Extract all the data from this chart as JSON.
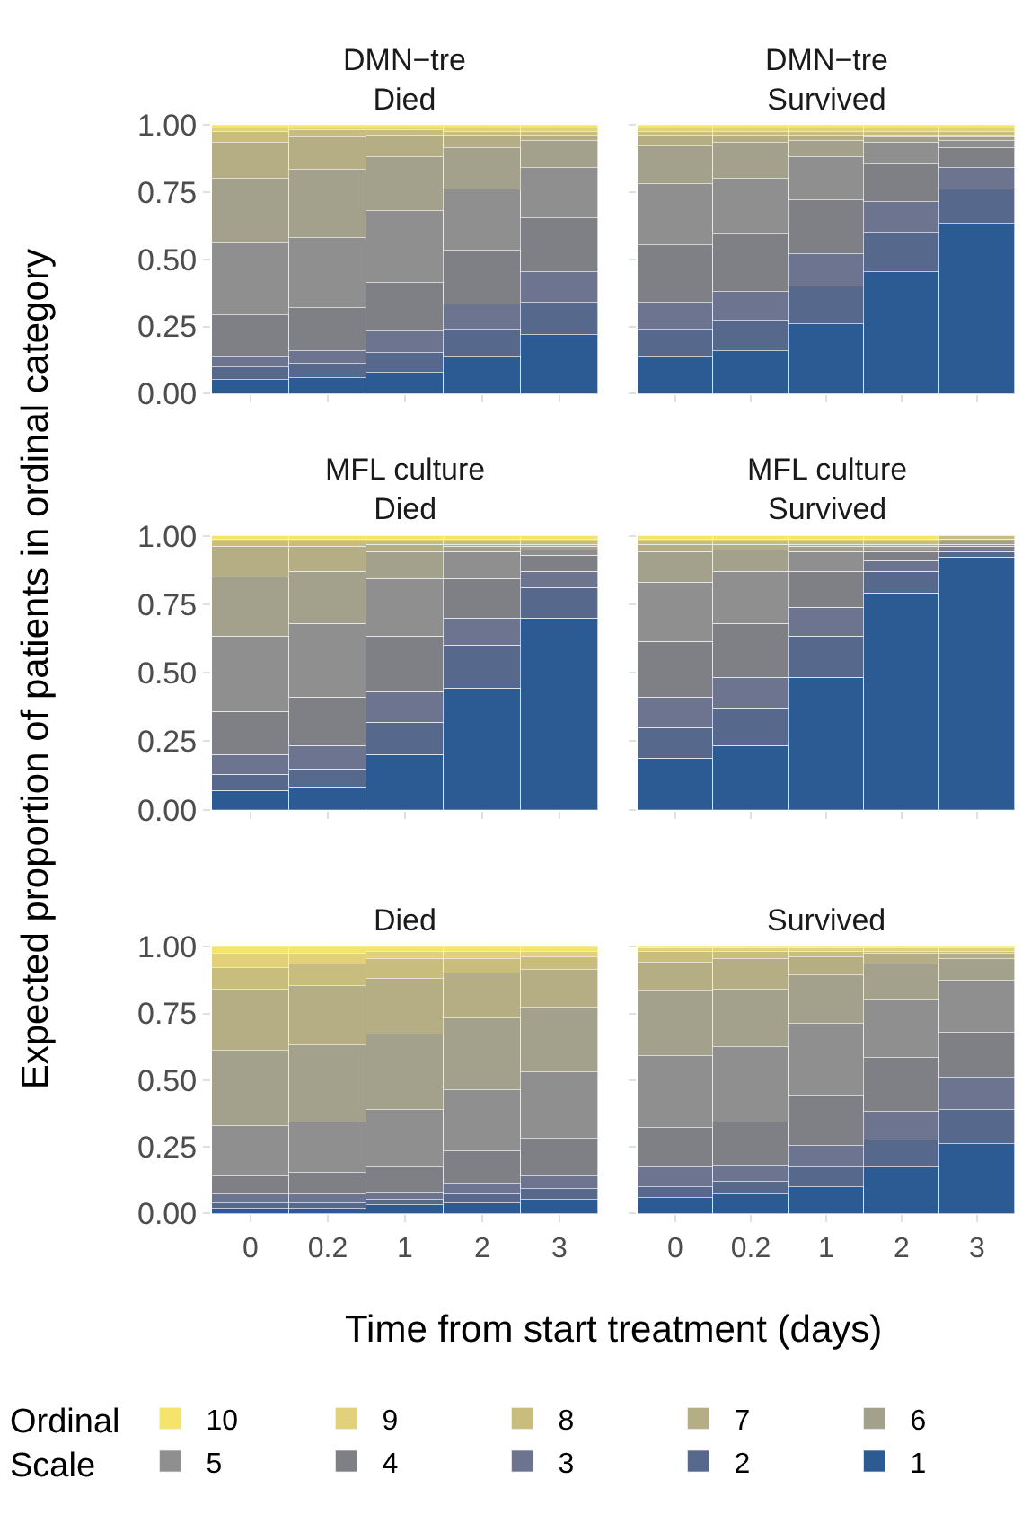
{
  "chart_data": [
    {
      "type": "bar",
      "title": "DMN−tre\nDied",
      "stacked": true,
      "grid": true,
      "tick_labels": "y",
      "legend": "bottom",
      "legend_title": "Ordinal\nScale",
      "categories": [
        "0",
        "0.2",
        "1",
        "2",
        "3"
      ],
      "ylim": [
        0,
        1
      ],
      "yticks": [
        {
          "value": 0,
          "label": "0.00"
        },
        {
          "value": 0.25,
          "label": "0.25"
        },
        {
          "value": 0.5,
          "label": "0.50"
        },
        {
          "value": 0.75,
          "label": "0.75"
        },
        {
          "value": 1,
          "label": "1.00"
        }
      ],
      "series": [
        {
          "name": "1",
          "color": "#2c5a92",
          "values": [
            0.05,
            0.06,
            0.08,
            0.14,
            0.22
          ]
        },
        {
          "name": "2",
          "color": "#57688d",
          "values": [
            0.05,
            0.05,
            0.07,
            0.1,
            0.12
          ]
        },
        {
          "name": "3",
          "color": "#6c7490",
          "values": [
            0.04,
            0.05,
            0.08,
            0.09,
            0.11
          ]
        },
        {
          "name": "4",
          "color": "#7f8086",
          "values": [
            0.15,
            0.16,
            0.18,
            0.2,
            0.2
          ]
        },
        {
          "name": "5",
          "color": "#8f8f8f",
          "values": [
            0.27,
            0.26,
            0.27,
            0.23,
            0.19
          ]
        },
        {
          "name": "6",
          "color": "#a3a08b",
          "values": [
            0.24,
            0.25,
            0.2,
            0.15,
            0.1
          ]
        },
        {
          "name": "7",
          "color": "#b5ae85",
          "values": [
            0.13,
            0.12,
            0.08,
            0.05,
            0.02
          ]
        },
        {
          "name": "8",
          "color": "#c8bd7d",
          "values": [
            0.04,
            0.03,
            0.02,
            0.01,
            0.01
          ]
        },
        {
          "name": "9",
          "color": "#e2d17a",
          "values": [
            0.02,
            0.01,
            0.01,
            0.02,
            0.02
          ]
        },
        {
          "name": "10",
          "color": "#f5e46c",
          "values": [
            0.01,
            0.01,
            0.01,
            0.01,
            0.01
          ]
        }
      ]
    },
    {
      "type": "bar",
      "title": "DMN−tre\nSurvived",
      "stacked": true,
      "grid": true,
      "tick_labels": false,
      "categories": [
        "0",
        "0.2",
        "1",
        "2",
        "3"
      ],
      "ylim": [
        0,
        1
      ],
      "yticks": [
        0,
        0.25,
        0.5,
        0.75,
        1
      ],
      "series": [
        {
          "color": "#2c5a92",
          "values": [
            0.14,
            0.16,
            0.26,
            0.45,
            0.63
          ]
        },
        {
          "color": "#57688d",
          "values": [
            0.1,
            0.11,
            0.14,
            0.15,
            0.13
          ]
        },
        {
          "color": "#6c7490",
          "values": [
            0.1,
            0.11,
            0.12,
            0.11,
            0.08
          ]
        },
        {
          "color": "#7f8086",
          "values": [
            0.21,
            0.21,
            0.2,
            0.14,
            0.07
          ]
        },
        {
          "color": "#8f8f8f",
          "values": [
            0.23,
            0.21,
            0.16,
            0.08,
            0.03
          ]
        },
        {
          "color": "#a3a08b",
          "values": [
            0.14,
            0.13,
            0.06,
            0.02,
            0.01
          ]
        },
        {
          "color": "#b5ae85",
          "values": [
            0.04,
            0.03,
            0.02,
            0.01,
            0.01
          ]
        },
        {
          "color": "#c8bd7d",
          "values": [
            0.01,
            0.01,
            0.01,
            0.01,
            0.01
          ]
        },
        {
          "color": "#e2d17a",
          "values": [
            0.02,
            0.02,
            0.02,
            0.02,
            0.02
          ]
        },
        {
          "color": "#f5e46c",
          "values": [
            0.01,
            0.01,
            0.01,
            0.01,
            0.01
          ]
        }
      ]
    },
    {
      "type": "bar",
      "title": "MFL culture\nDied",
      "ylabel": "Expected proportion of patients in ordinal category",
      "stacked": true,
      "grid": true,
      "tick_labels": "y",
      "categories": [
        "0",
        "0.2",
        "1",
        "2",
        "3"
      ],
      "ylim": [
        0,
        1
      ],
      "yticks": [
        {
          "value": 0,
          "label": "0.00"
        },
        {
          "value": 0.25,
          "label": "0.25"
        },
        {
          "value": 0.5,
          "label": "0.50"
        },
        {
          "value": 0.75,
          "label": "0.75"
        },
        {
          "value": 1,
          "label": "1.00"
        }
      ],
      "series": [
        {
          "color": "#2c5a92",
          "values": [
            0.07,
            0.08,
            0.2,
            0.44,
            0.7
          ]
        },
        {
          "color": "#57688d",
          "values": [
            0.06,
            0.07,
            0.12,
            0.16,
            0.11
          ]
        },
        {
          "color": "#6c7490",
          "values": [
            0.07,
            0.08,
            0.11,
            0.1,
            0.06
          ]
        },
        {
          "color": "#7f8086",
          "values": [
            0.16,
            0.18,
            0.2,
            0.14,
            0.06
          ]
        },
        {
          "color": "#8f8f8f",
          "values": [
            0.27,
            0.27,
            0.21,
            0.1,
            0.02
          ]
        },
        {
          "color": "#a3a08b",
          "values": [
            0.22,
            0.19,
            0.1,
            0.02,
            0.01
          ]
        },
        {
          "color": "#b5ae85",
          "values": [
            0.11,
            0.09,
            0.03,
            0.01,
            0.01
          ]
        },
        {
          "color": "#c8bd7d",
          "values": [
            0.02,
            0.02,
            0.01,
            0.01,
            0.01
          ]
        },
        {
          "color": "#e2d17a",
          "values": [
            0.01,
            0.01,
            0.01,
            0.01,
            0.01
          ]
        },
        {
          "color": "#f5e46c",
          "values": [
            0.01,
            0.01,
            0.01,
            0.01,
            0.01
          ]
        }
      ]
    },
    {
      "type": "bar",
      "title": "MFL culture\nSurvived",
      "stacked": true,
      "grid": true,
      "tick_labels": false,
      "categories": [
        "0",
        "0.2",
        "1",
        "2",
        "3"
      ],
      "ylim": [
        0,
        1
      ],
      "yticks": [
        0,
        0.25,
        0.5,
        0.75,
        1
      ],
      "series": [
        {
          "color": "#2c5a92",
          "values": [
            0.19,
            0.23,
            0.48,
            0.79,
            0.92
          ]
        },
        {
          "color": "#57688d",
          "values": [
            0.11,
            0.14,
            0.15,
            0.08,
            0.02
          ]
        },
        {
          "color": "#6c7490",
          "values": [
            0.11,
            0.11,
            0.11,
            0.04,
            0.01
          ]
        },
        {
          "color": "#7f8086",
          "values": [
            0.2,
            0.2,
            0.13,
            0.03,
            0.01
          ]
        },
        {
          "color": "#8f8f8f",
          "values": [
            0.22,
            0.19,
            0.07,
            0.01,
            0.01
          ]
        },
        {
          "color": "#a3a08b",
          "values": [
            0.11,
            0.08,
            0.02,
            0.01,
            0.01
          ]
        },
        {
          "color": "#b5ae85",
          "values": [
            0.03,
            0.02,
            0.01,
            0.01,
            0.01
          ]
        },
        {
          "color": "#c8bd7d",
          "values": [
            0.01,
            0.01,
            0.01,
            0.01,
            0.01
          ]
        },
        {
          "color": "#e2d17a",
          "values": [
            0.01,
            0.01,
            0.01,
            0.01,
            null
          ]
        },
        {
          "color": "#f5e46c",
          "values": [
            0.01,
            0.01,
            0.01,
            0.01,
            null
          ]
        }
      ]
    },
    {
      "type": "bar",
      "title": "Died",
      "xlabel": "Time from start treatment (days)",
      "stacked": true,
      "grid": true,
      "categories": [
        "0",
        "0.2",
        "1",
        "2",
        "3"
      ],
      "ylim": [
        0,
        1
      ],
      "yticks": [
        {
          "value": 0,
          "label": "0.00"
        },
        {
          "value": 0.25,
          "label": "0.25"
        },
        {
          "value": 0.5,
          "label": "0.50"
        },
        {
          "value": 0.75,
          "label": "0.75"
        },
        {
          "value": 1,
          "label": "1.00"
        }
      ],
      "series": [
        {
          "color": "#2c5a92",
          "values": [
            0.02,
            0.02,
            0.03,
            0.04,
            0.05
          ]
        },
        {
          "color": "#57688d",
          "values": [
            0.02,
            0.02,
            0.02,
            0.03,
            0.04
          ]
        },
        {
          "color": "#6c7490",
          "values": [
            0.03,
            0.03,
            0.03,
            0.04,
            0.05
          ]
        },
        {
          "color": "#7f8086",
          "values": [
            0.07,
            0.08,
            0.09,
            0.12,
            0.14
          ]
        },
        {
          "color": "#8f8f8f",
          "values": [
            0.19,
            0.19,
            0.22,
            0.23,
            0.25
          ]
        },
        {
          "color": "#a3a08b",
          "values": [
            0.28,
            0.29,
            0.28,
            0.27,
            0.24
          ]
        },
        {
          "color": "#b5ae85",
          "values": [
            0.23,
            0.22,
            0.21,
            0.17,
            0.14
          ]
        },
        {
          "color": "#c8bd7d",
          "values": [
            0.08,
            0.08,
            0.07,
            0.05,
            0.05
          ]
        },
        {
          "color": "#e2d17a",
          "values": [
            0.05,
            0.04,
            0.03,
            0.03,
            0.02
          ]
        },
        {
          "color": "#f5e46c",
          "values": [
            0.03,
            0.03,
            0.02,
            0.02,
            0.02
          ]
        }
      ]
    },
    {
      "type": "bar",
      "title": "Survived",
      "stacked": true,
      "grid": true,
      "tick_labels": "x",
      "categories": [
        "0",
        "0.2",
        "1",
        "2",
        "3"
      ],
      "ylim": [
        0,
        1
      ],
      "yticks": [
        0,
        0.25,
        0.5,
        0.75,
        1
      ],
      "series": [
        {
          "color": "#2c5a92",
          "values": [
            0.06,
            0.07,
            0.1,
            0.17,
            0.26
          ]
        },
        {
          "color": "#57688d",
          "values": [
            0.04,
            0.05,
            0.07,
            0.1,
            0.13
          ]
        },
        {
          "color": "#6c7490",
          "values": [
            0.07,
            0.06,
            0.08,
            0.11,
            0.12
          ]
        },
        {
          "color": "#7f8086",
          "values": [
            0.15,
            0.16,
            0.19,
            0.2,
            0.17
          ]
        },
        {
          "color": "#8f8f8f",
          "values": [
            0.27,
            0.28,
            0.27,
            0.22,
            0.19
          ]
        },
        {
          "color": "#a3a08b",
          "values": [
            0.24,
            0.22,
            0.18,
            0.13,
            0.08
          ]
        },
        {
          "color": "#b5ae85",
          "values": [
            0.11,
            0.11,
            0.07,
            0.04,
            0.02
          ]
        },
        {
          "color": "#c8bd7d",
          "values": [
            0.04,
            0.03,
            0.02,
            0.01,
            0.01
          ]
        },
        {
          "color": "#e2d17a",
          "values": [
            0.01,
            0.01,
            0.01,
            0.01,
            0.01
          ]
        },
        {
          "color": "#f5e46c",
          "values": [
            0.01,
            0.01,
            0.01,
            0.01,
            0.01
          ]
        }
      ]
    }
  ]
}
